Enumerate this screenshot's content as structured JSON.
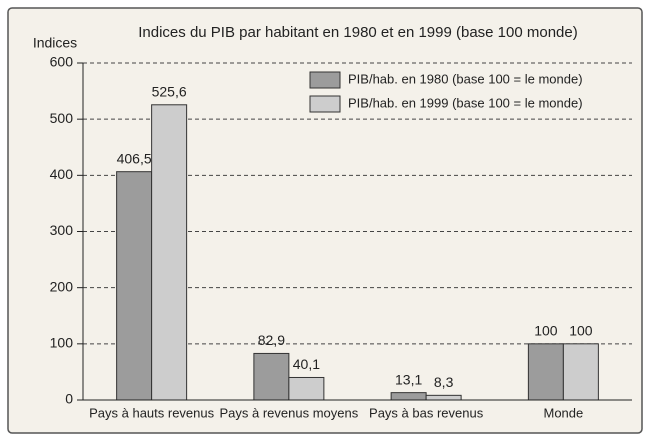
{
  "chart_data": {
    "type": "bar",
    "title": "Indices du PIB par habitant en 1980 et en 1999 (base 100 monde)",
    "y_label": "Indices",
    "categories": [
      "Pays à hauts revenus",
      "Pays à revenus moyens",
      "Pays à bas revenus",
      "Monde"
    ],
    "series": [
      {
        "name": "PIB/hab. en 1980 (base 100 = le monde)",
        "color": "#9c9c9c",
        "values": [
          406.5,
          82.9,
          13.1,
          100
        ],
        "value_labels": [
          "406,5",
          "82,9",
          "13,1",
          "100"
        ]
      },
      {
        "name": "PIB/hab. en 1999 (base 100 = le monde)",
        "color": "#cdcdcd",
        "values": [
          525.6,
          40.1,
          8.3,
          100
        ],
        "value_labels": [
          "525,6",
          "40,1",
          "8,3",
          "100"
        ]
      }
    ],
    "ylim": [
      0,
      600
    ],
    "yticks": [
      0,
      100,
      200,
      300,
      400,
      500,
      600
    ],
    "grid": true,
    "legend": "top-right"
  }
}
